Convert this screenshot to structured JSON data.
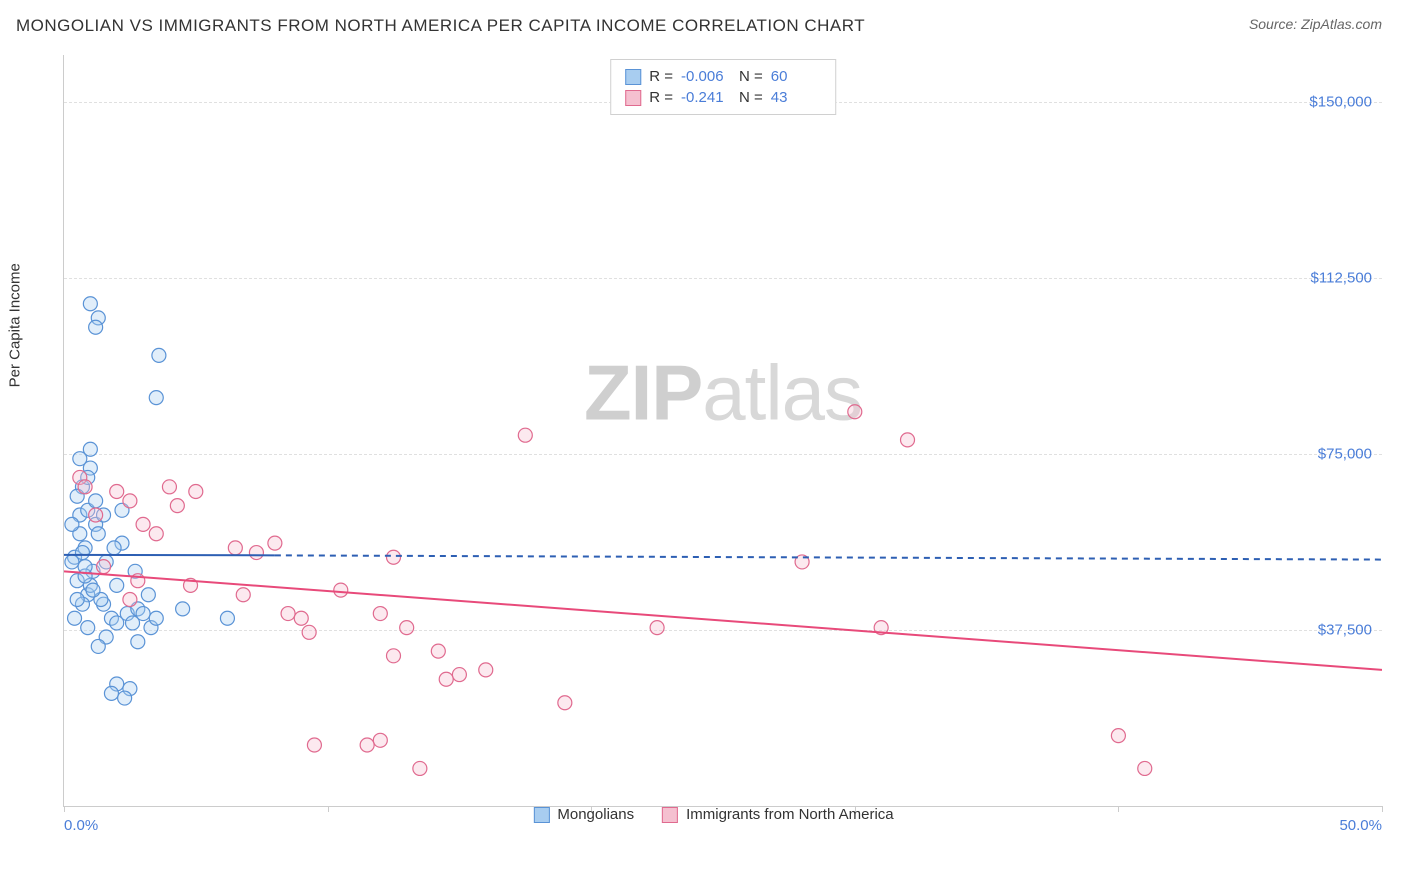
{
  "header": {
    "title": "MONGOLIAN VS IMMIGRANTS FROM NORTH AMERICA PER CAPITA INCOME CORRELATION CHART",
    "source_prefix": "Source: ",
    "source": "ZipAtlas.com"
  },
  "watermark": {
    "left": "ZIP",
    "right": "atlas"
  },
  "chart": {
    "type": "scatter",
    "y_axis_label": "Per Capita Income",
    "xlim": [
      0,
      50
    ],
    "ylim": [
      0,
      160000
    ],
    "x_ticks": [
      0,
      10,
      20,
      30,
      40,
      50
    ],
    "x_tick_labels": {
      "0": "0.0%",
      "50": "50.0%"
    },
    "y_ticks": [
      37500,
      75000,
      112500,
      150000
    ],
    "y_tick_labels": [
      "$37,500",
      "$75,000",
      "$112,500",
      "$150,000"
    ],
    "grid_color": "#e0e0e0",
    "axis_color": "#cccccc",
    "tick_label_color": "#4a7dd8",
    "background_color": "#ffffff",
    "marker_radius": 7,
    "marker_stroke_width": 1.2,
    "marker_fill_opacity": 0.35,
    "trend_line_width": 2,
    "trend_dash": "6,5"
  },
  "series": [
    {
      "key": "mongolians",
      "label": "Mongolians",
      "color_fill": "#a8cdf0",
      "color_stroke": "#5a93d6",
      "trend_color": "#2d5fb3",
      "R": "-0.006",
      "N": "60",
      "trend": {
        "x1": 0,
        "y1": 53500,
        "x2_solid": 8,
        "y2_solid": 53400,
        "x2": 50,
        "y2": 52500
      },
      "points": [
        [
          0.4,
          53000
        ],
        [
          0.6,
          62000
        ],
        [
          0.5,
          48000
        ],
        [
          0.8,
          55000
        ],
        [
          0.7,
          68000
        ],
        [
          1.0,
          72000
        ],
        [
          0.9,
          45000
        ],
        [
          0.3,
          52000
        ],
        [
          1.2,
          60000
        ],
        [
          0.5,
          66000
        ],
        [
          1.1,
          50000
        ],
        [
          0.6,
          58000
        ],
        [
          0.7,
          54000
        ],
        [
          0.4,
          40000
        ],
        [
          1.0,
          47000
        ],
        [
          0.9,
          63000
        ],
        [
          1.3,
          58000
        ],
        [
          0.8,
          49000
        ],
        [
          1.5,
          43000
        ],
        [
          1.2,
          65000
        ],
        [
          1.6,
          52000
        ],
        [
          1.8,
          40000
        ],
        [
          2.0,
          39000
        ],
        [
          2.2,
          56000
        ],
        [
          1.4,
          44000
        ],
        [
          2.4,
          41000
        ],
        [
          2.6,
          39000
        ],
        [
          2.8,
          42000
        ],
        [
          2.0,
          26000
        ],
        [
          2.5,
          25000
        ],
        [
          3.0,
          41000
        ],
        [
          3.3,
          38000
        ],
        [
          3.5,
          40000
        ],
        [
          1.8,
          24000
        ],
        [
          2.3,
          23000
        ],
        [
          2.8,
          35000
        ],
        [
          1.0,
          107000
        ],
        [
          1.3,
          104000
        ],
        [
          1.2,
          102000
        ],
        [
          3.6,
          96000
        ],
        [
          3.5,
          87000
        ],
        [
          6.2,
          40000
        ],
        [
          4.5,
          42000
        ],
        [
          1.0,
          76000
        ],
        [
          0.6,
          74000
        ],
        [
          0.9,
          70000
        ],
        [
          2.2,
          63000
        ],
        [
          1.5,
          62000
        ],
        [
          0.3,
          60000
        ],
        [
          0.8,
          51000
        ],
        [
          1.1,
          46000
        ],
        [
          0.7,
          43000
        ],
        [
          2.0,
          47000
        ],
        [
          2.7,
          50000
        ],
        [
          3.2,
          45000
        ],
        [
          1.9,
          55000
        ],
        [
          0.5,
          44000
        ],
        [
          1.6,
          36000
        ],
        [
          1.3,
          34000
        ],
        [
          0.9,
          38000
        ]
      ]
    },
    {
      "key": "immigrants",
      "label": "Immigrants from North America",
      "color_fill": "#f5c0d0",
      "color_stroke": "#e06a8f",
      "trend_color": "#e84a7a",
      "R": "-0.241",
      "N": "43",
      "trend": {
        "x1": 0,
        "y1": 50000,
        "x2_solid": 50,
        "y2_solid": 29000,
        "x2": 50,
        "y2": 29000
      },
      "points": [
        [
          0.6,
          70000
        ],
        [
          0.8,
          68000
        ],
        [
          2.0,
          67000
        ],
        [
          2.5,
          65000
        ],
        [
          4.0,
          68000
        ],
        [
          4.3,
          64000
        ],
        [
          5.0,
          67000
        ],
        [
          3.0,
          60000
        ],
        [
          1.2,
          62000
        ],
        [
          2.8,
          48000
        ],
        [
          17.5,
          79000
        ],
        [
          30.0,
          84000
        ],
        [
          32.0,
          78000
        ],
        [
          6.5,
          55000
        ],
        [
          7.3,
          54000
        ],
        [
          8.0,
          56000
        ],
        [
          12.5,
          53000
        ],
        [
          6.8,
          45000
        ],
        [
          28.0,
          52000
        ],
        [
          8.5,
          41000
        ],
        [
          9.0,
          40000
        ],
        [
          9.3,
          37000
        ],
        [
          12.0,
          41000
        ],
        [
          12.5,
          32000
        ],
        [
          13.0,
          38000
        ],
        [
          22.5,
          38000
        ],
        [
          31.0,
          38000
        ],
        [
          14.2,
          33000
        ],
        [
          14.5,
          27000
        ],
        [
          15.0,
          28000
        ],
        [
          16.0,
          29000
        ],
        [
          19.0,
          22000
        ],
        [
          11.5,
          13000
        ],
        [
          12.0,
          14000
        ],
        [
          13.5,
          8000
        ],
        [
          9.5,
          13000
        ],
        [
          40.0,
          15000
        ],
        [
          41.0,
          8000
        ],
        [
          3.5,
          58000
        ],
        [
          4.8,
          47000
        ],
        [
          10.5,
          46000
        ],
        [
          1.5,
          51000
        ],
        [
          2.5,
          44000
        ]
      ]
    }
  ],
  "corr_legend": {
    "R_label": "R =",
    "N_label": "N ="
  }
}
